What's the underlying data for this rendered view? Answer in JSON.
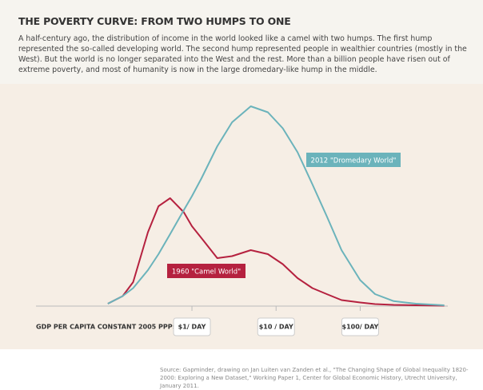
{
  "chart_data": {
    "type": "line",
    "title": "THE POVERTY CURVE: FROM TWO HUMPS TO ONE",
    "subtitle": "A half-century ago, the distribution of income in the world looked like a camel with two humps. The first hump represented the so-called developing world. The second hump represented people in wealthier countries (mostly in the West). But the world is no longer separated into the West and the rest. More than a billion people have risen out of extreme poverty, and most of humanity is now in the large dromedary-like hump in the middle.",
    "x_label": "GDP PER CAPITA CONSTANT 2005 PPP$",
    "source": "Source: Gapminder, drawing on Jan Luiten van Zanden et al., \"The Changing Shape of Global Inequality 1820-2000: Exploring a New Dataset,\" Working Paper 1, Center for Global Economic History, Utrecht University, January 2011.",
    "x_log": true,
    "x": [
      0.1,
      0.15,
      0.2,
      0.3,
      0.4,
      0.55,
      0.8,
      1,
      1.3,
      2,
      3,
      5,
      8,
      12,
      18,
      27,
      40,
      60,
      100,
      150,
      250,
      460,
      1000
    ],
    "series": [
      {
        "name": "1960 \"Camel World\"",
        "color": "#b5213f",
        "values": [
          1.2,
          5,
          12,
          37,
          50,
          54,
          47,
          40,
          34,
          24,
          25,
          28,
          26,
          21,
          14,
          9,
          6,
          3,
          1.8,
          1,
          0.6,
          0.4,
          0.2
        ]
      },
      {
        "name": "2012 \"Dromedary World\"",
        "color": "#6bb3bb",
        "values": [
          1.2,
          5,
          9,
          18,
          26,
          36,
          48,
          55,
          64,
          80,
          92,
          100,
          97,
          89,
          77,
          61,
          45,
          28,
          13,
          6,
          2.5,
          1.2,
          0.4
        ]
      }
    ],
    "xlim": [
      0.014,
      1100
    ],
    "ylim": [
      0,
      100
    ],
    "xticks": [
      {
        "value": 1,
        "label": "$1/ DAY"
      },
      {
        "value": 10,
        "label": "$10 / DAY"
      },
      {
        "value": 100,
        "label": "$100/ DAY"
      }
    ]
  }
}
